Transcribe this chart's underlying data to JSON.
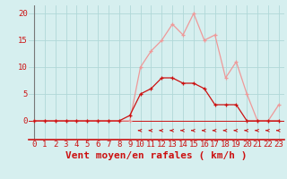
{
  "x_labels": [
    0,
    1,
    2,
    3,
    4,
    5,
    6,
    7,
    8,
    9,
    10,
    11,
    12,
    13,
    14,
    15,
    16,
    17,
    18,
    19,
    20,
    21,
    22,
    23
  ],
  "mean_wind": [
    0,
    0,
    0,
    0,
    0,
    0,
    0,
    0,
    0,
    1,
    5,
    6,
    8,
    8,
    7,
    7,
    6,
    3,
    3,
    3,
    0,
    0,
    0,
    0
  ],
  "gust_wind": [
    0,
    0,
    0,
    0,
    0,
    0,
    0,
    0,
    0,
    0,
    10,
    13,
    15,
    18,
    16,
    20,
    15,
    16,
    8,
    11,
    5,
    0,
    0,
    3
  ],
  "arrow_hours": [
    10,
    11,
    12,
    13,
    14,
    15,
    16,
    17,
    18,
    19,
    20,
    21,
    22,
    23
  ],
  "bg_color": "#d6efef",
  "grid_color": "#b0d8d8",
  "mean_color": "#cc1111",
  "gust_color": "#ee9999",
  "axis_label_color": "#cc1111",
  "xlabel": "Vent moyen/en rafales ( km/h )",
  "tick_fontsize": 6.5,
  "xlabel_fontsize": 8,
  "ylabel_values": [
    0,
    5,
    10,
    15,
    20
  ],
  "xlim": [
    -0.5,
    23.5
  ],
  "ylim": [
    -3.5,
    21.5
  ]
}
